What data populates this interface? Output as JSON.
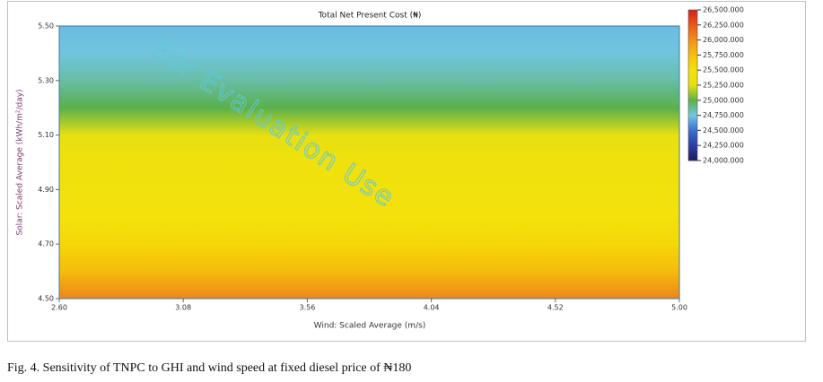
{
  "chart_data": {
    "type": "heatmap",
    "title": "Total Net Present Cost (₦)",
    "xlabel": "Wind: Scaled Average (m/s)",
    "ylabel": "Solar: Scaled Average (kWh/m²/day)",
    "watermark": "For Evaluation Use",
    "xlim": [
      2.6,
      5.0
    ],
    "xticks": [
      {
        "value": 2.6,
        "label": "2.60"
      },
      {
        "value": 3.08,
        "label": "3.08"
      },
      {
        "value": 3.56,
        "label": "3.56"
      },
      {
        "value": 4.04,
        "label": "4.04"
      },
      {
        "value": 4.52,
        "label": "4.52"
      },
      {
        "value": 5.0,
        "label": "5.00"
      }
    ],
    "ylim": [
      4.5,
      5.5
    ],
    "yticks": [
      {
        "value": 4.5,
        "label": "4.50"
      },
      {
        "value": 4.7,
        "label": "4.70"
      },
      {
        "value": 4.9,
        "label": "4.90"
      },
      {
        "value": 5.1,
        "label": "5.10"
      },
      {
        "value": 5.3,
        "label": "5.30"
      },
      {
        "value": 5.5,
        "label": "5.50"
      }
    ],
    "y": [
      4.5,
      4.6,
      4.7,
      4.8,
      4.9,
      5.0,
      5.1,
      5.2,
      5.3,
      5.4,
      5.5
    ],
    "values": [
      26050,
      25780,
      25580,
      25480,
      25430,
      25380,
      25250,
      25000,
      24850,
      24760,
      24720
    ],
    "zlim": [
      24000,
      26500
    ],
    "zticks": [
      {
        "value": 26500,
        "label": "26,500.000"
      },
      {
        "value": 26250,
        "label": "26,250.000"
      },
      {
        "value": 26000,
        "label": "26,000.000"
      },
      {
        "value": 25750,
        "label": "25,750.000"
      },
      {
        "value": 25500,
        "label": "25,500.000"
      },
      {
        "value": 25250,
        "label": "25,250.000"
      },
      {
        "value": 25000,
        "label": "25,000.000"
      },
      {
        "value": 24750,
        "label": "24,750.000"
      },
      {
        "value": 24500,
        "label": "24,500.000"
      },
      {
        "value": 24250,
        "label": "24,250.000"
      },
      {
        "value": 24000,
        "label": "24,000.000"
      }
    ],
    "zcolors": [
      "#d42020",
      "#e85a18",
      "#f0901a",
      "#f5c20a",
      "#f5e10a",
      "#e8e010",
      "#5ab04a",
      "#72c6e2",
      "#3a6fd0",
      "#2a3fa0",
      "#1a1a5e"
    ]
  },
  "caption": "Fig. 4. Sensitivity of TNPC to GHI and wind speed at fixed diesel price of ₦180"
}
